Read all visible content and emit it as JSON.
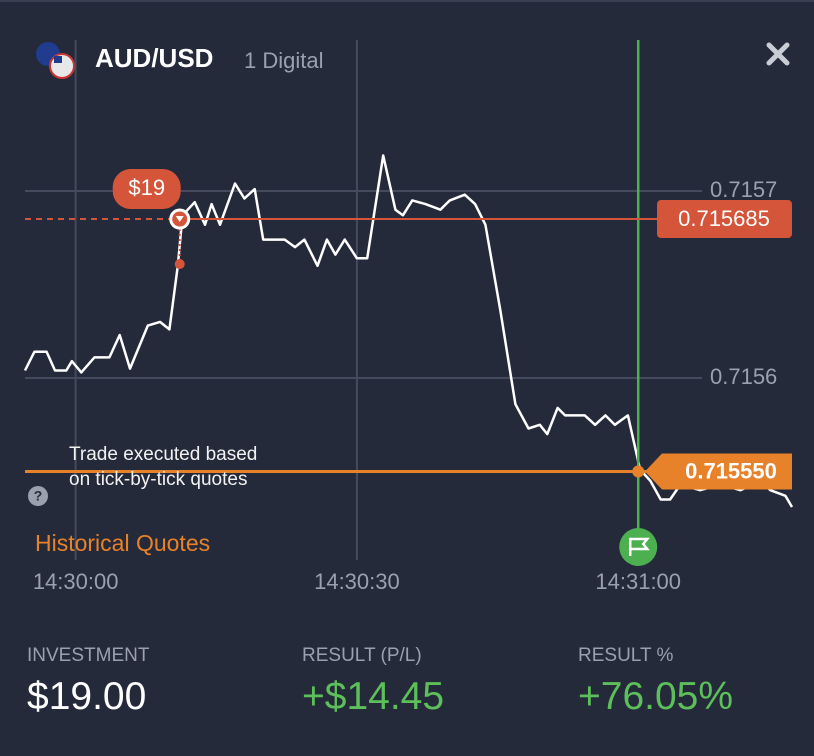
{
  "header": {
    "asset": "AUD/USD",
    "option_type": "1 Digital"
  },
  "chart": {
    "type": "line",
    "color": "#ffffff",
    "grid": true,
    "x": [
      52194.6,
      52195.6,
      52196.9,
      52197.8,
      52199.0,
      52199.6,
      52200.6,
      52202.0,
      52203.6,
      52204.7,
      52205.8,
      52207.7,
      52209.0,
      52210.0,
      52210.9,
      52211.4,
      52212.7,
      52213.8,
      52214.5,
      52215.4,
      52217.0,
      52218.0,
      52219.1,
      52220.0,
      52222.3,
      52223.4,
      52224.4,
      52225.8,
      52226.8,
      52227.7,
      52228.7,
      52230.0,
      52231.1,
      52232.8,
      52234.1,
      52234.9,
      52235.9,
      52237.3,
      52238.9,
      52239.9,
      52241.5,
      52242.6,
      52243.7,
      52245.3,
      52246.9,
      52248.3,
      52249.5,
      52250.3,
      52251.4,
      52252.2,
      52254.3,
      52255.4,
      52256.5,
      52257.5,
      52258.9,
      52260.2,
      52261.3,
      52262.4,
      52263.4,
      52264.5,
      52266.6,
      52268.8,
      52270.9,
      52273.0,
      52274.1,
      52275.7,
      52276.4
    ],
    "values": [
      0.715604,
      0.715614,
      0.715614,
      0.715604,
      0.715604,
      0.715609,
      0.715603,
      0.715611,
      0.715611,
      0.715623,
      0.715605,
      0.715628,
      0.71563,
      0.715626,
      0.71566,
      0.715687,
      0.715694,
      0.715682,
      0.715693,
      0.715682,
      0.715704,
      0.715696,
      0.715701,
      0.715674,
      0.715674,
      0.71567,
      0.715674,
      0.71566,
      0.715674,
      0.715666,
      0.715674,
      0.715664,
      0.715664,
      0.715719,
      0.71569,
      0.715687,
      0.715695,
      0.715693,
      0.71569,
      0.715695,
      0.715698,
      0.715693,
      0.715682,
      0.715636,
      0.715586,
      0.715573,
      0.715575,
      0.71557,
      0.715584,
      0.71558,
      0.71558,
      0.715575,
      0.71558,
      0.715575,
      0.71558,
      0.715551,
      0.715545,
      0.715535,
      0.715535,
      0.715543,
      0.71554,
      0.715543,
      0.71554,
      0.715545,
      0.71554,
      0.715537,
      0.715531
    ],
    "xlim": [
      52194.6,
      52276.4
    ],
    "ylim": [
      0.7155,
      0.71578
    ],
    "xticks": [
      {
        "value": 52200,
        "label": "14:30:00"
      },
      {
        "value": 52230,
        "label": "14:30:30"
      },
      {
        "value": 52260,
        "label": "14:31:00"
      }
    ],
    "yticks": [
      0.7156,
      0.7157
    ],
    "entry": {
      "x": 52211.1,
      "value": 0.715685,
      "amount": "$19",
      "color": "#d4553a"
    },
    "expiration": {
      "x": 52260,
      "color": "#4caf50"
    },
    "close": {
      "value": 0.71555,
      "value_label": "0.715550",
      "color": "#e8822a"
    },
    "note": "Trade executed based on tick-by-tick quotes",
    "link": "Historical Quotes"
  },
  "summary": [
    {
      "label": "INVESTMENT",
      "value": "$19.00"
    },
    {
      "label": "RESULT (P/L)",
      "value": "+$14.45"
    },
    {
      "label": "RESULT %",
      "value": "+76.05%"
    }
  ]
}
